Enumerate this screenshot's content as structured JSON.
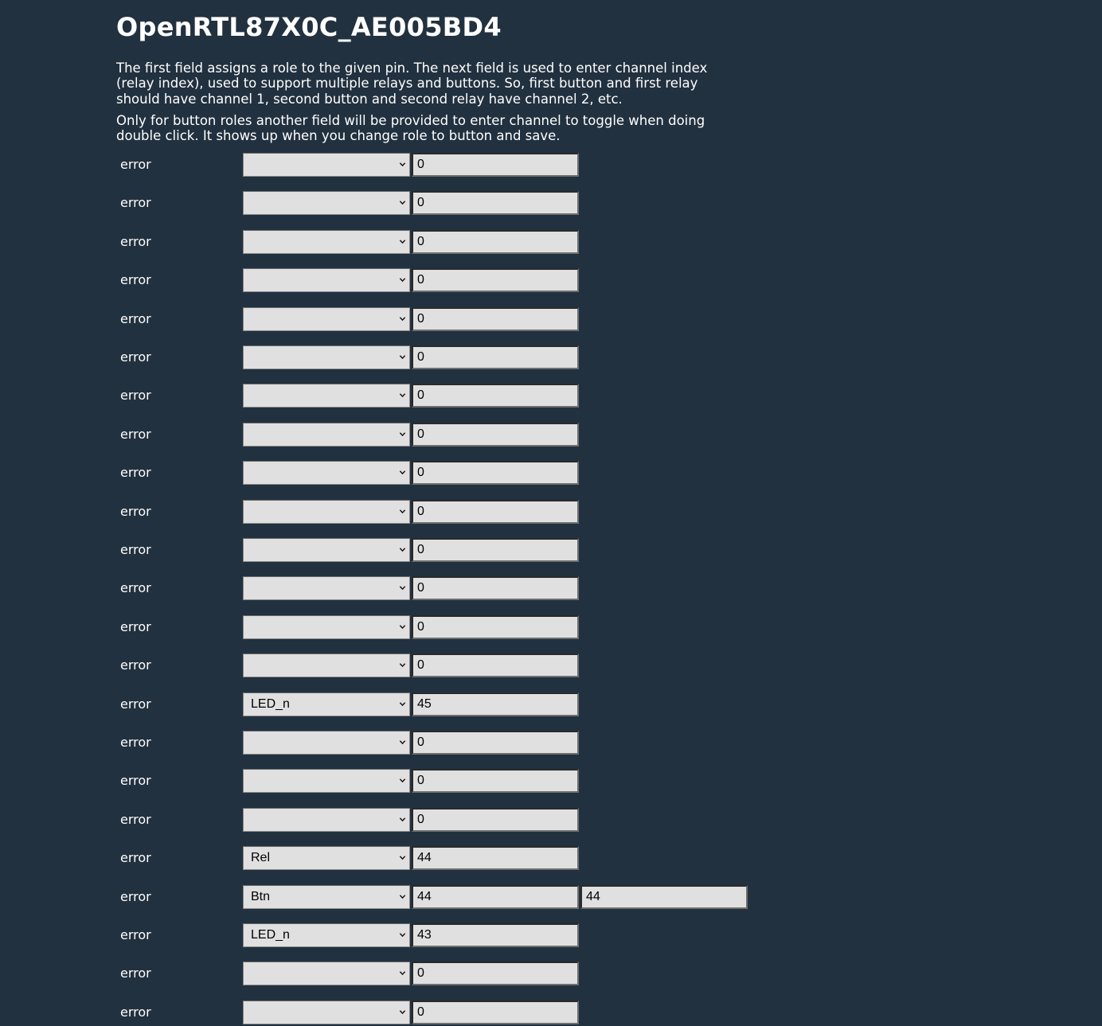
{
  "page": {
    "title": "OpenRTL87X0C_AE005BD4",
    "description_1": "The first field assigns a role to the given pin. The next field is used to enter channel index (relay index), used to support multiple relays and buttons. So, first button and first relay should have channel 1, second button and second relay have channel 2, etc.",
    "description_2": "Only for button roles another field will be provided to enter channel to toggle when doing double click. It shows up when you change role to button and save."
  },
  "pins": [
    {
      "label": "error",
      "role": "",
      "channel": "0"
    },
    {
      "label": "error",
      "role": "",
      "channel": "0"
    },
    {
      "label": "error",
      "role": "",
      "channel": "0"
    },
    {
      "label": "error",
      "role": "",
      "channel": "0"
    },
    {
      "label": "error",
      "role": "",
      "channel": "0"
    },
    {
      "label": "error",
      "role": "",
      "channel": "0"
    },
    {
      "label": "error",
      "role": "",
      "channel": "0"
    },
    {
      "label": "error",
      "role": "",
      "channel": "0"
    },
    {
      "label": "error",
      "role": "",
      "channel": "0"
    },
    {
      "label": "error",
      "role": "",
      "channel": "0"
    },
    {
      "label": "error",
      "role": "",
      "channel": "0"
    },
    {
      "label": "error",
      "role": "",
      "channel": "0"
    },
    {
      "label": "error",
      "role": "",
      "channel": "0"
    },
    {
      "label": "error",
      "role": "",
      "channel": "0"
    },
    {
      "label": "error",
      "role": "LED_n",
      "channel": "45"
    },
    {
      "label": "error",
      "role": "",
      "channel": "0"
    },
    {
      "label": "error",
      "role": "",
      "channel": "0"
    },
    {
      "label": "error",
      "role": "",
      "channel": "0"
    },
    {
      "label": "error",
      "role": "Rel",
      "channel": "44"
    },
    {
      "label": "error",
      "role": "Btn",
      "channel": "44",
      "channel2": "44"
    },
    {
      "label": "error",
      "role": "LED_n",
      "channel": "43"
    },
    {
      "label": "error",
      "role": "",
      "channel": "0"
    },
    {
      "label": "error",
      "role": "",
      "channel": "0"
    }
  ]
}
